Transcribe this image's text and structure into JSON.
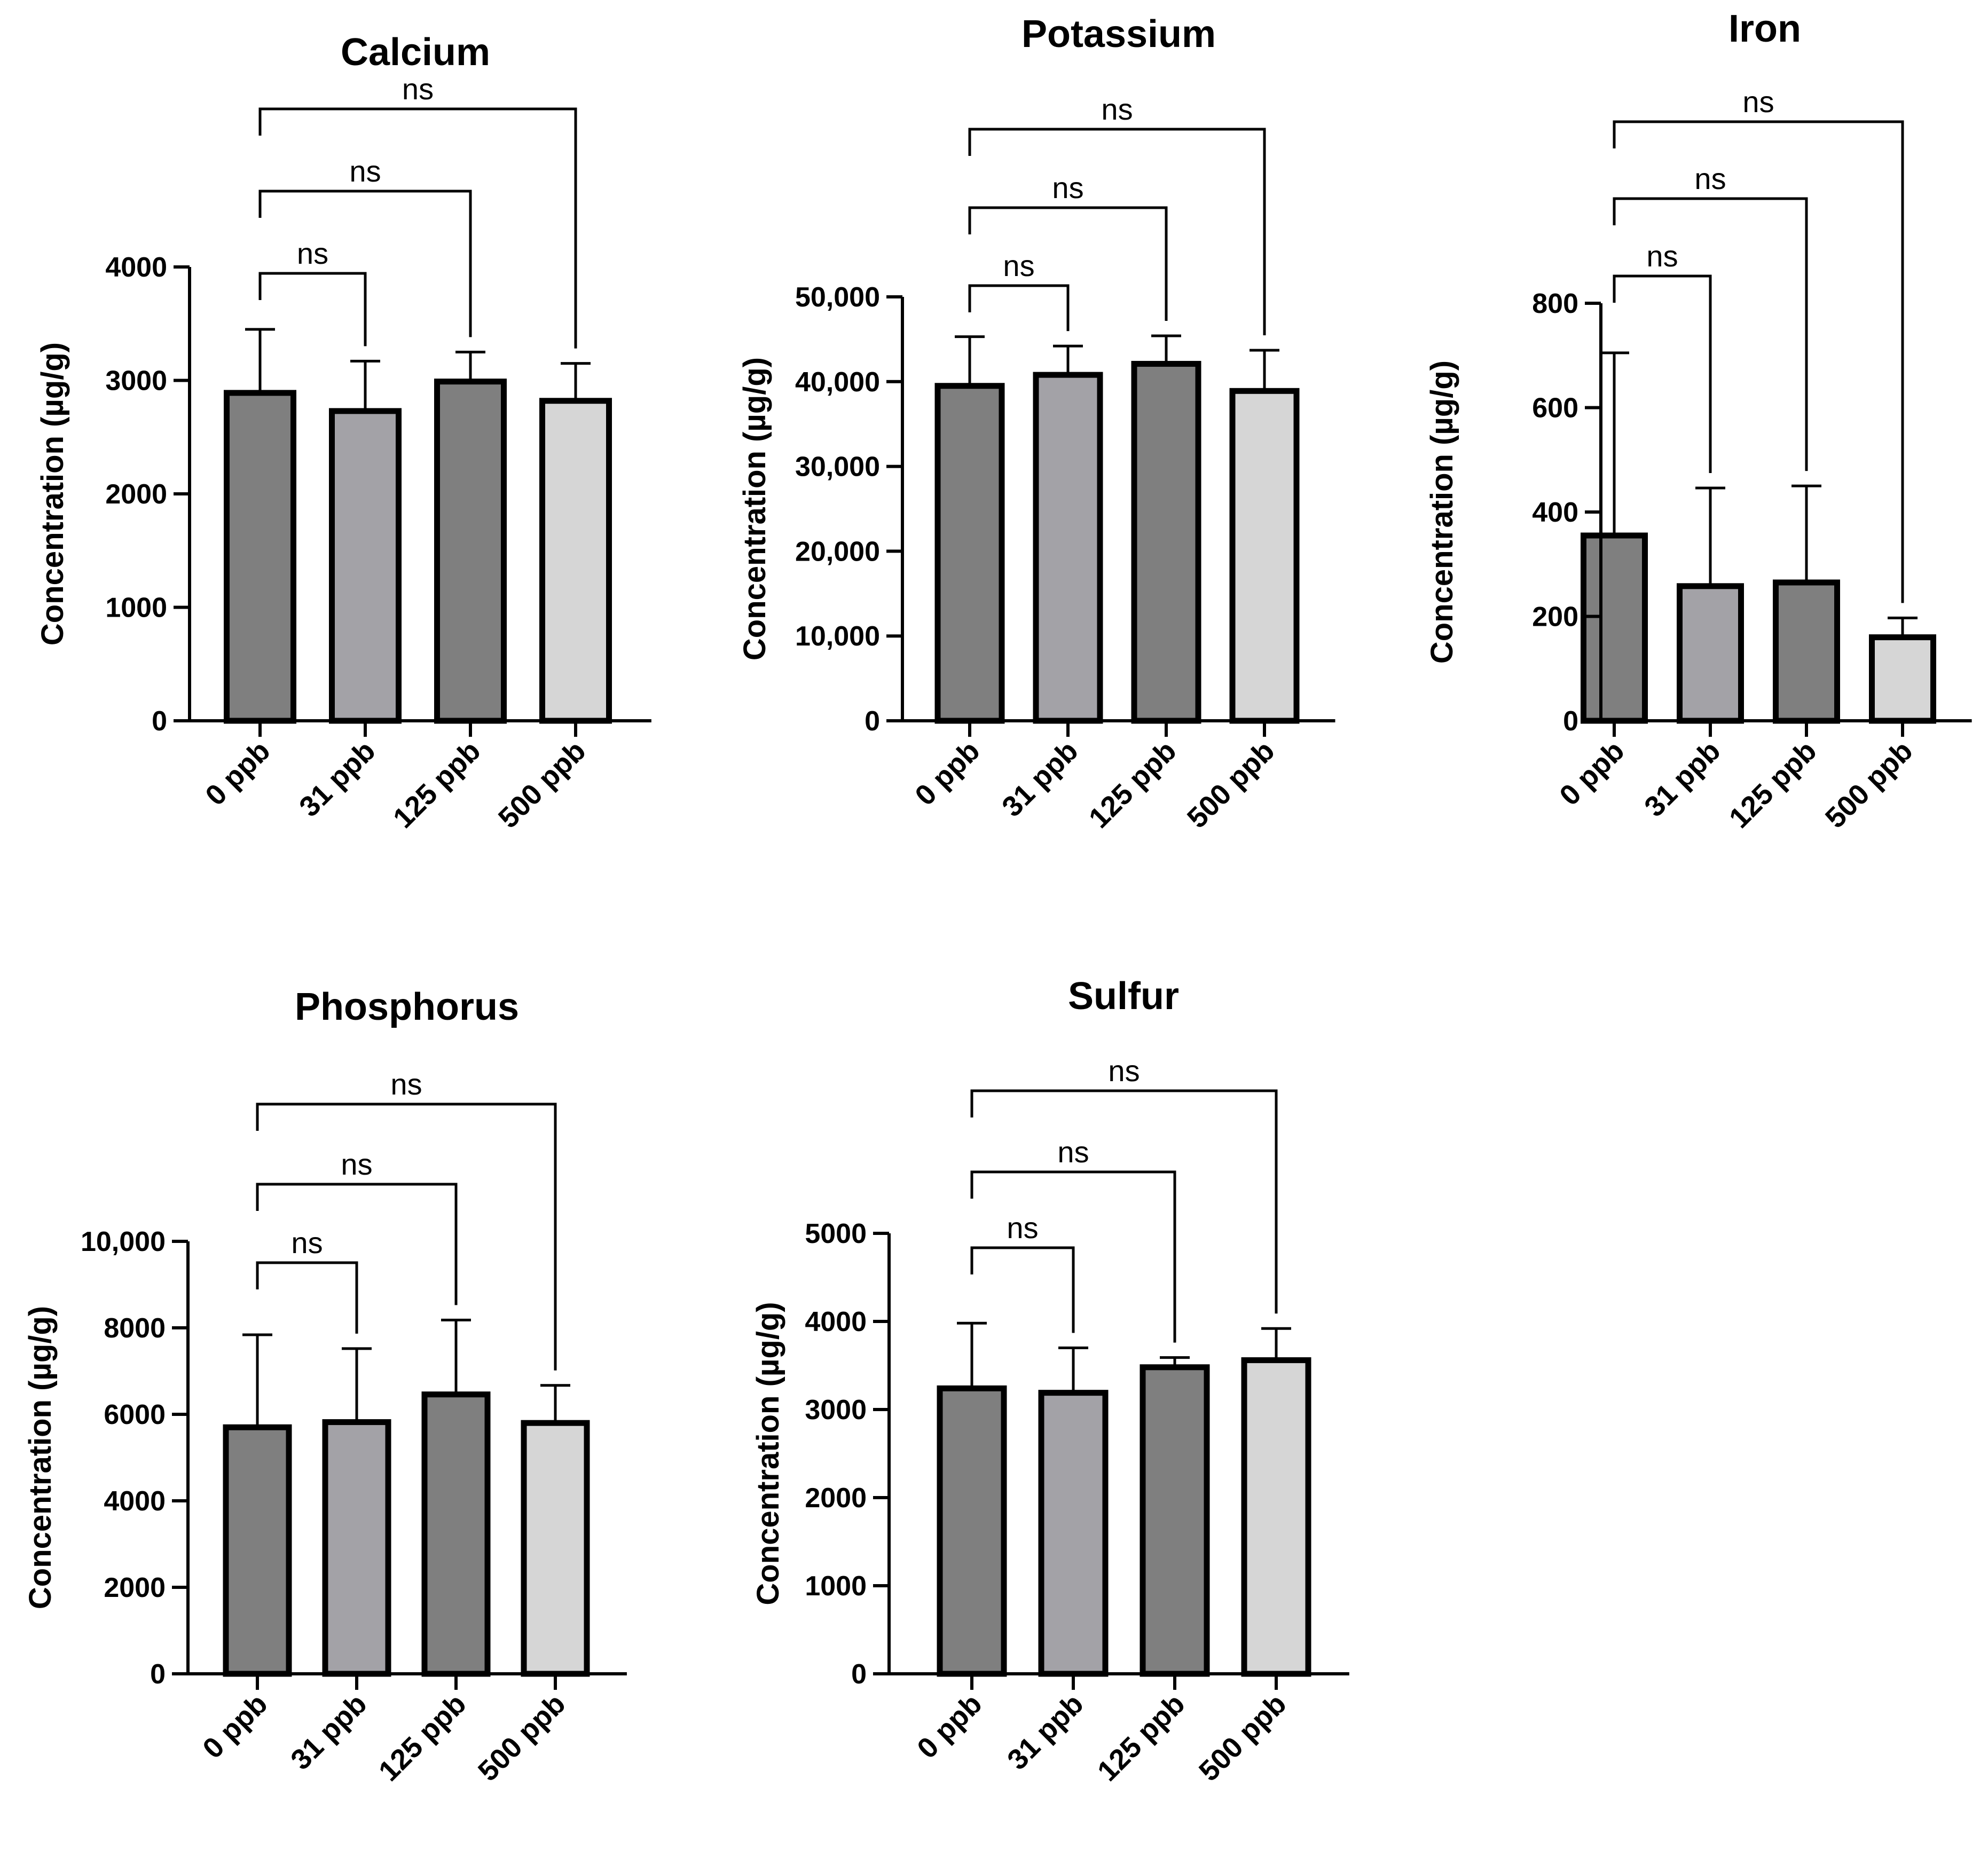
{
  "colors": {
    "dark": "#7f7f7f",
    "mid": "#a3a2a7",
    "light": "#d6d6d6",
    "stroke": "#000000"
  },
  "chart_data": [
    {
      "type": "bar",
      "title": "Calcium",
      "ylabel": "Concentration (µg/g)",
      "xlabel": "",
      "categories": [
        "0 ppb",
        "31 ppb",
        "125 ppb",
        "500 ppb"
      ],
      "values": [
        2890,
        2730,
        2990,
        2820
      ],
      "errors": [
        560,
        440,
        260,
        330
      ],
      "fill_keys": [
        "dark",
        "mid",
        "dark",
        "light"
      ],
      "ylim": [
        0,
        4000
      ],
      "yticks": [
        0,
        1000,
        2000,
        3000,
        4000
      ],
      "ytick_labels": [
        "0",
        "1000",
        "2000",
        "3000",
        "4000"
      ],
      "comparisons": [
        {
          "from": 0,
          "to": 1,
          "label": "ns"
        },
        {
          "from": 0,
          "to": 2,
          "label": "ns"
        },
        {
          "from": 0,
          "to": 3,
          "label": "ns"
        }
      ]
    },
    {
      "type": "bar",
      "title": "Potassium",
      "ylabel": "Concentration (µg/g)",
      "xlabel": "",
      "categories": [
        "0 ppb",
        "31 ppb",
        "125 ppb",
        "500 ppb"
      ],
      "values": [
        39500,
        40800,
        42100,
        38900
      ],
      "errors": [
        5800,
        3400,
        3300,
        4800
      ],
      "fill_keys": [
        "dark",
        "mid",
        "dark",
        "light"
      ],
      "ylim": [
        0,
        50000
      ],
      "yticks": [
        0,
        10000,
        20000,
        30000,
        40000,
        50000
      ],
      "ytick_labels": [
        "0",
        "10,000",
        "20,000",
        "30,000",
        "40,000",
        "50,000"
      ],
      "comparisons": [
        {
          "from": 0,
          "to": 1,
          "label": "ns"
        },
        {
          "from": 0,
          "to": 2,
          "label": "ns"
        },
        {
          "from": 0,
          "to": 3,
          "label": "ns"
        }
      ]
    },
    {
      "type": "bar",
      "title": "Iron",
      "ylabel": "Concentration (µg/g)",
      "xlabel": "",
      "categories": [
        "0 ppb",
        "31 ppb",
        "125 ppb",
        "500 ppb"
      ],
      "values": [
        355,
        258,
        265,
        160
      ],
      "errors": [
        350,
        188,
        185,
        37
      ],
      "fill_keys": [
        "dark",
        "mid",
        "dark",
        "light"
      ],
      "ylim": [
        0,
        800
      ],
      "yticks": [
        0,
        200,
        400,
        600,
        800
      ],
      "ytick_labels": [
        "0",
        "200",
        "400",
        "600",
        "800"
      ],
      "comparisons": [
        {
          "from": 0,
          "to": 1,
          "label": "ns"
        },
        {
          "from": 0,
          "to": 2,
          "label": "ns"
        },
        {
          "from": 0,
          "to": 3,
          "label": "ns"
        }
      ]
    },
    {
      "type": "bar",
      "title": "Phosphorus",
      "ylabel": "Concentration (µg/g)",
      "xlabel": "",
      "categories": [
        "0 ppb",
        "31 ppb",
        "125 ppb",
        "500 ppb"
      ],
      "values": [
        5700,
        5820,
        6460,
        5800
      ],
      "errors": [
        2140,
        1700,
        1720,
        870
      ],
      "fill_keys": [
        "dark",
        "mid",
        "dark",
        "light"
      ],
      "ylim": [
        0,
        10000
      ],
      "yticks": [
        0,
        2000,
        4000,
        6000,
        8000,
        10000
      ],
      "ytick_labels": [
        "0",
        "2000",
        "4000",
        "6000",
        "8000",
        "10,000"
      ],
      "comparisons": [
        {
          "from": 0,
          "to": 1,
          "label": "ns"
        },
        {
          "from": 0,
          "to": 2,
          "label": "ns"
        },
        {
          "from": 0,
          "to": 3,
          "label": "ns"
        }
      ]
    },
    {
      "type": "bar",
      "title": "Sulfur",
      "ylabel": "Concentration (µg/g)",
      "xlabel": "",
      "categories": [
        "0 ppb",
        "31 ppb",
        "125 ppb",
        "500 ppb"
      ],
      "values": [
        3240,
        3190,
        3480,
        3560
      ],
      "errors": [
        740,
        510,
        110,
        360
      ],
      "fill_keys": [
        "dark",
        "mid",
        "dark",
        "light"
      ],
      "ylim": [
        0,
        5000
      ],
      "yticks": [
        0,
        1000,
        2000,
        3000,
        4000,
        5000
      ],
      "ytick_labels": [
        "0",
        "1000",
        "2000",
        "3000",
        "4000",
        "5000"
      ],
      "comparisons": [
        {
          "from": 0,
          "to": 1,
          "label": "ns"
        },
        {
          "from": 0,
          "to": 2,
          "label": "ns"
        },
        {
          "from": 0,
          "to": 3,
          "label": "ns"
        }
      ]
    }
  ]
}
